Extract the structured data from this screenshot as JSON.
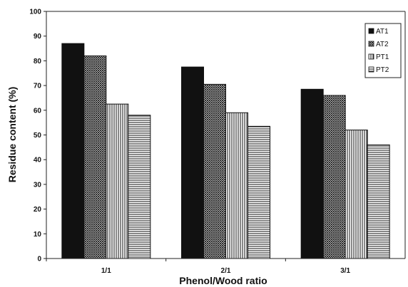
{
  "chart_data": {
    "type": "bar",
    "title": "",
    "xlabel": "Phenol/Wood ratio",
    "ylabel": "Residue content (%)",
    "categories": [
      "1/1",
      "2/1",
      "3/1"
    ],
    "series": [
      {
        "name": "AT1",
        "values": [
          87,
          77.5,
          68.5
        ],
        "pattern": "solid"
      },
      {
        "name": "AT2",
        "values": [
          82,
          70.5,
          66
        ],
        "pattern": "crosshatch"
      },
      {
        "name": "PT1",
        "values": [
          62.5,
          59,
          52
        ],
        "pattern": "vertical-lines"
      },
      {
        "name": "PT2",
        "values": [
          58,
          53.5,
          46
        ],
        "pattern": "horizontal-lines"
      }
    ],
    "ylim": [
      0,
      100
    ],
    "yticks": [
      0,
      10,
      20,
      30,
      40,
      50,
      60,
      70,
      80,
      90,
      100
    ],
    "grid": false,
    "legend_position": "top-right",
    "colors": {
      "ink": "#111111",
      "background": "#ffffff"
    }
  }
}
